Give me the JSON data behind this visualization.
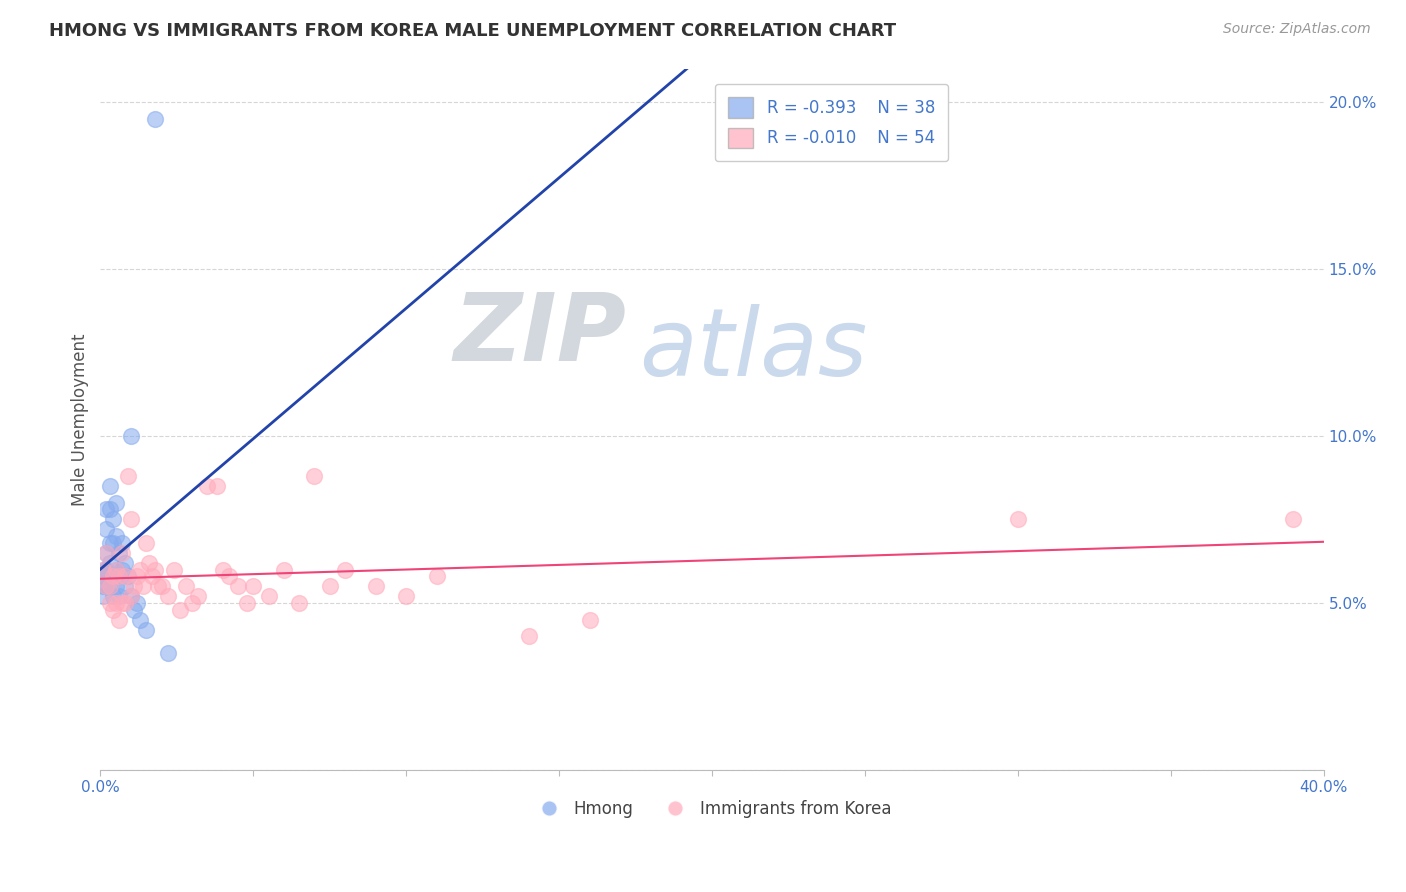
{
  "title": "HMONG VS IMMIGRANTS FROM KOREA MALE UNEMPLOYMENT CORRELATION CHART",
  "source_text": "Source: ZipAtlas.com",
  "xlabel": "",
  "ylabel": "Male Unemployment",
  "xlim": [
    0.0,
    0.4
  ],
  "ylim": [
    0.0,
    0.21
  ],
  "xtick_positions": [
    0.0,
    0.05,
    0.1,
    0.15,
    0.2,
    0.25,
    0.3,
    0.35,
    0.4
  ],
  "xtick_labels": [
    "0.0%",
    "",
    "",
    "",
    "",
    "",
    "",
    "",
    "40.0%"
  ],
  "ytick_positions": [
    0.0,
    0.05,
    0.1,
    0.15,
    0.2
  ],
  "ytick_labels": [
    "",
    "5.0%",
    "10.0%",
    "15.0%",
    "20.0%"
  ],
  "hmong_R": "-0.393",
  "hmong_N": "38",
  "korea_R": "-0.010",
  "korea_N": "54",
  "hmong_color": "#85aaee",
  "korea_color": "#ffaabb",
  "hmong_line_color": "#2244aa",
  "korea_line_color": "#ee4477",
  "legend_label_hmong": "Hmong",
  "legend_label_korea": "Immigrants from Korea",
  "background_color": "#ffffff",
  "grid_color": "#cccccc",
  "title_color": "#333333",
  "axis_label_color": "#555555",
  "tick_label_color": "#4477cc",
  "hmong_x": [
    0.001,
    0.001,
    0.001,
    0.001,
    0.002,
    0.002,
    0.002,
    0.002,
    0.002,
    0.003,
    0.003,
    0.003,
    0.003,
    0.003,
    0.004,
    0.004,
    0.004,
    0.004,
    0.005,
    0.005,
    0.005,
    0.005,
    0.006,
    0.006,
    0.006,
    0.007,
    0.007,
    0.008,
    0.008,
    0.009,
    0.01,
    0.01,
    0.011,
    0.012,
    0.013,
    0.015,
    0.018,
    0.022
  ],
  "hmong_y": [
    0.06,
    0.058,
    0.055,
    0.052,
    0.078,
    0.072,
    0.065,
    0.06,
    0.055,
    0.085,
    0.078,
    0.068,
    0.062,
    0.055,
    0.075,
    0.068,
    0.058,
    0.052,
    0.08,
    0.07,
    0.06,
    0.055,
    0.065,
    0.058,
    0.052,
    0.068,
    0.06,
    0.062,
    0.055,
    0.058,
    0.1,
    0.052,
    0.048,
    0.05,
    0.045,
    0.042,
    0.195,
    0.035
  ],
  "korea_x": [
    0.001,
    0.002,
    0.002,
    0.003,
    0.003,
    0.004,
    0.004,
    0.005,
    0.005,
    0.006,
    0.006,
    0.007,
    0.007,
    0.008,
    0.008,
    0.009,
    0.01,
    0.01,
    0.011,
    0.012,
    0.013,
    0.014,
    0.015,
    0.016,
    0.017,
    0.018,
    0.019,
    0.02,
    0.022,
    0.024,
    0.026,
    0.028,
    0.03,
    0.032,
    0.035,
    0.038,
    0.04,
    0.042,
    0.045,
    0.048,
    0.05,
    0.055,
    0.06,
    0.065,
    0.07,
    0.075,
    0.08,
    0.09,
    0.1,
    0.11,
    0.14,
    0.16,
    0.3,
    0.39
  ],
  "korea_y": [
    0.06,
    0.065,
    0.055,
    0.055,
    0.05,
    0.058,
    0.048,
    0.06,
    0.05,
    0.058,
    0.045,
    0.065,
    0.05,
    0.058,
    0.05,
    0.088,
    0.075,
    0.052,
    0.055,
    0.058,
    0.06,
    0.055,
    0.068,
    0.062,
    0.058,
    0.06,
    0.055,
    0.055,
    0.052,
    0.06,
    0.048,
    0.055,
    0.05,
    0.052,
    0.085,
    0.085,
    0.06,
    0.058,
    0.055,
    0.05,
    0.055,
    0.052,
    0.06,
    0.05,
    0.088,
    0.055,
    0.06,
    0.055,
    0.052,
    0.058,
    0.04,
    0.045,
    0.075,
    0.075
  ]
}
